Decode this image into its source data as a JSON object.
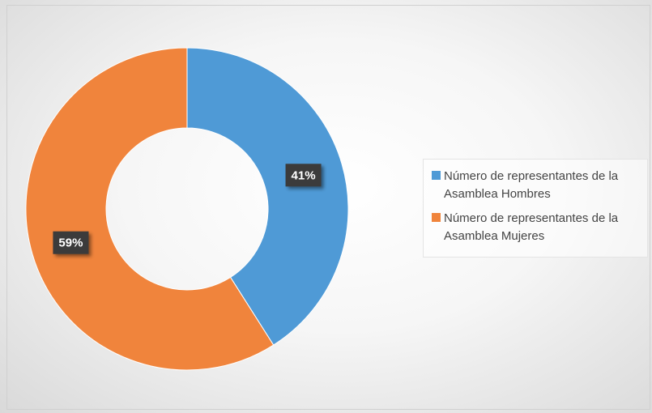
{
  "chart_data": {
    "type": "pie",
    "donut": true,
    "categories": [
      "Número de representantes de la Asamblea Hombres",
      "Número de representantes de la Asamblea Mujeres"
    ],
    "values": [
      41,
      59
    ],
    "value_labels": [
      "41%",
      "59%"
    ],
    "colors": [
      "#4f9ad6",
      "#f0843c"
    ],
    "legend": "right"
  }
}
